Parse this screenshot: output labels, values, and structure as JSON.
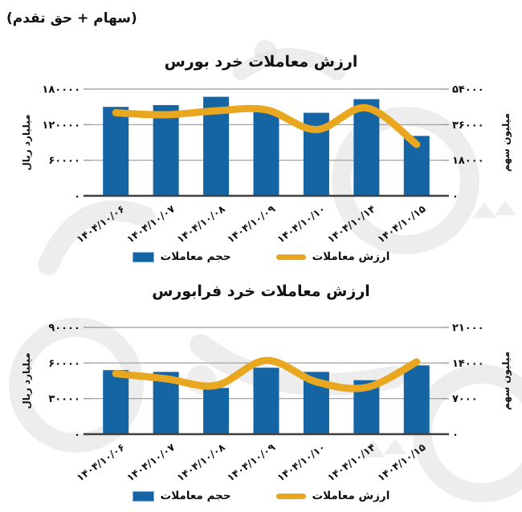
{
  "header": {
    "note": "(سهام + حق تقدم)"
  },
  "colors": {
    "bar": "#1565a5",
    "bar_swatch_border": "#79aede",
    "line": "#e8a71e",
    "grid": "#9a9a9a",
    "baseline": "#3f3f3f",
    "text": "#111111",
    "watermark": "#dedede"
  },
  "chart_data": [
    {
      "type": "bar+line",
      "title": "ارزش معاملات خرد بورس",
      "categories": [
        "۱۴۰۴/۱۰/۰۶",
        "۱۴۰۴/۱۰/۰۷",
        "۱۴۰۴/۱۰/۰۸",
        "۱۴۰۴/۱۰/۰۹",
        "۱۴۰۴/۱۰/۱۰",
        "۱۴۰۴/۱۰/۱۴",
        "۱۴۰۴/۱۰/۱۵"
      ],
      "series": [
        {
          "name": "حجم معاملات",
          "type": "bar",
          "axis": "left",
          "values": [
            150000,
            153000,
            167000,
            142000,
            140000,
            163000,
            101000
          ]
        },
        {
          "name": "ارزش معاملات",
          "type": "line",
          "axis": "right",
          "values": [
            42000,
            41000,
            43000,
            43500,
            33500,
            44500,
            26000
          ]
        }
      ],
      "left_axis": {
        "label": "میلیارد ریال",
        "min": 0,
        "max": 180000,
        "ticks": [
          "۰",
          "۶۰۰۰۰",
          "۱۲۰۰۰۰",
          "۱۸۰۰۰۰"
        ]
      },
      "right_axis": {
        "label": "میلیون سهم",
        "min": 0,
        "max": 54000,
        "ticks": [
          "۰",
          "۱۸۰۰۰",
          "۳۶۰۰۰",
          "۵۴۰۰۰"
        ]
      },
      "grid": true,
      "legend_position": "bottom"
    },
    {
      "type": "bar+line",
      "title": "ارزش معاملات خرد فرابورس",
      "categories": [
        "۱۴۰۴/۱۰/۰۶",
        "۱۴۰۴/۱۰/۰۷",
        "۱۴۰۴/۱۰/۰۸",
        "۱۴۰۴/۱۰/۰۹",
        "۱۴۰۴/۱۰/۱۰",
        "۱۴۰۴/۱۰/۱۴",
        "۱۴۰۴/۱۰/۱۵"
      ],
      "series": [
        {
          "name": "حجم معاملات",
          "type": "bar",
          "axis": "left",
          "values": [
            54000,
            52500,
            39000,
            56000,
            52500,
            45500,
            58000
          ]
        },
        {
          "name": "ارزش معاملات",
          "type": "line",
          "axis": "right",
          "values": [
            11900,
            10900,
            9600,
            14500,
            10300,
            9200,
            14200
          ]
        }
      ],
      "left_axis": {
        "label": "میلیارد ریال",
        "min": 0,
        "max": 90000,
        "ticks": [
          "۰",
          "۳۰۰۰۰",
          "۶۰۰۰۰",
          "۹۰۰۰۰"
        ]
      },
      "right_axis": {
        "label": "میلیون سهم",
        "min": 0,
        "max": 21000,
        "ticks": [
          "۰",
          "۷۰۰۰",
          "۱۴۰۰۰",
          "۲۱۰۰۰"
        ]
      },
      "grid": true,
      "legend_position": "bottom"
    }
  ]
}
